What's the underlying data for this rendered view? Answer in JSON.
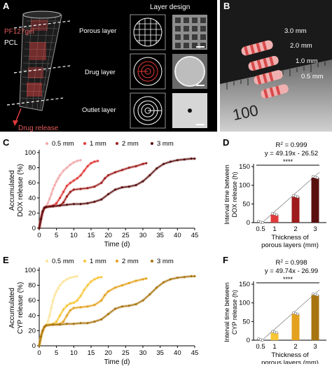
{
  "panel_a": {
    "letter": "A",
    "pf127_label": "PF127gel",
    "pcl_label": "PCL",
    "drug_release_label": "Drug release",
    "layer_design_title": "Layer design",
    "layers": [
      "Porous layer",
      "Drug layer",
      "Outlet layer"
    ]
  },
  "panel_b": {
    "letter": "B",
    "size_labels": [
      "3.0 mm",
      "2.0 mm",
      "1.0 mm",
      "0.5 mm"
    ],
    "ruler_text": "100"
  },
  "colors": {
    "c_05": "#f2a8a8",
    "c_1": "#e03a3a",
    "c_2": "#9e1c1c",
    "c_3": "#5a0f0f",
    "e_05": "#fde49a",
    "e_1": "#f7c535",
    "e_2": "#e3a11d",
    "e_3": "#a8740f"
  },
  "chart_data": [
    {
      "panel": "C",
      "type": "scatter",
      "xlabel": "Time (d)",
      "ylabel_lines": [
        "Accumulated",
        "DOX release (%)"
      ],
      "xlim": [
        0,
        45
      ],
      "ylim": [
        0,
        100
      ],
      "xticks": [
        0,
        5,
        10,
        15,
        20,
        25,
        30,
        35,
        40,
        45
      ],
      "yticks": [
        0,
        20,
        40,
        60,
        80,
        100
      ],
      "legend": [
        "0.5 mm",
        "1 mm",
        "2 mm",
        "3 mm"
      ],
      "series": [
        {
          "name": "0.5 mm",
          "x": [
            0,
            0.5,
            1,
            1.5,
            2,
            2.5,
            3,
            3.5,
            4,
            4.5,
            5,
            5.5,
            6,
            7,
            8,
            9,
            10,
            11,
            12
          ],
          "y": [
            0,
            12,
            22,
            27,
            29,
            33,
            39,
            45,
            52,
            57,
            62,
            66,
            70,
            76,
            80,
            84,
            87,
            89,
            90
          ]
        },
        {
          "name": "1 mm",
          "x": [
            0,
            0.5,
            1,
            1.5,
            2,
            3,
            4,
            5,
            6,
            7,
            8,
            9,
            10,
            11,
            12,
            13,
            14,
            15,
            16,
            17
          ],
          "y": [
            0,
            12,
            22,
            27,
            28,
            29,
            30,
            33,
            40,
            48,
            56,
            60,
            63,
            66,
            70,
            76,
            82,
            86,
            88,
            89
          ]
        },
        {
          "name": "2 mm",
          "x": [
            0,
            0.5,
            1,
            1.5,
            2,
            4,
            6,
            7,
            8,
            9,
            10,
            12,
            14,
            16,
            18,
            19,
            20,
            22,
            24,
            26,
            28,
            30,
            31
          ],
          "y": [
            0,
            12,
            22,
            27,
            28,
            29,
            30,
            34,
            42,
            48,
            51,
            52,
            53,
            55,
            60,
            66,
            70,
            74,
            77,
            80,
            82,
            85,
            86
          ]
        },
        {
          "name": "3 mm",
          "x": [
            0,
            0.5,
            1,
            1.5,
            2,
            4,
            6,
            8,
            10,
            12,
            14,
            16,
            18,
            20,
            22,
            24,
            26,
            28,
            30,
            32,
            34,
            36,
            38,
            40,
            42,
            44,
            45
          ],
          "y": [
            0,
            12,
            22,
            27,
            28,
            29,
            30,
            31,
            32,
            32,
            33,
            35,
            38,
            45,
            51,
            54,
            55,
            57,
            62,
            70,
            79,
            85,
            88,
            90,
            91,
            92,
            92
          ]
        }
      ]
    },
    {
      "panel": "D",
      "type": "bar",
      "categories": [
        "0.5",
        "1",
        "2",
        "3"
      ],
      "values": [
        0,
        21,
        69,
        120
      ],
      "xlabel_lines": [
        "Thickness of",
        "porous layers (mm)"
      ],
      "ylabel_lines": [
        "Interval time between",
        "DOX release (h)"
      ],
      "ylim": [
        0,
        150
      ],
      "yticks": [
        0,
        50,
        100,
        150
      ],
      "r2": "R",
      "r2_value": " = 0.999",
      "equation": "y = 49.19x - 26.52",
      "significance": "****"
    },
    {
      "panel": "E",
      "type": "scatter",
      "xlabel": "Time (d)",
      "ylabel_lines": [
        "Accumulated",
        "CYP release (%)"
      ],
      "xlim": [
        0,
        45
      ],
      "ylim": [
        0,
        100
      ],
      "xticks": [
        0,
        5,
        10,
        15,
        20,
        25,
        30,
        35,
        40,
        45
      ],
      "yticks": [
        0,
        20,
        40,
        60,
        80,
        100
      ],
      "legend": [
        "0.5 mm",
        "1 mm",
        "2 mm",
        "3 mm"
      ],
      "series": [
        {
          "name": "0.5 mm",
          "x": [
            0,
            0.5,
            1,
            1.5,
            2,
            2.5,
            3,
            3.5,
            4,
            4.5,
            5,
            5.5,
            6,
            7,
            8,
            9,
            10,
            11
          ],
          "y": [
            0,
            12,
            20,
            25,
            27,
            32,
            40,
            50,
            60,
            67,
            72,
            76,
            80,
            85,
            88,
            90,
            91,
            92
          ]
        },
        {
          "name": "1 mm",
          "x": [
            0,
            0.5,
            1,
            1.5,
            2,
            3,
            4,
            5,
            6,
            7,
            8,
            9,
            10,
            11,
            12,
            13,
            14,
            15,
            16,
            17,
            18
          ],
          "y": [
            0,
            12,
            20,
            25,
            27,
            28,
            29,
            32,
            40,
            48,
            53,
            56,
            57,
            60,
            66,
            74,
            80,
            85,
            88,
            90,
            91
          ]
        },
        {
          "name": "2 mm",
          "x": [
            0,
            0.5,
            1,
            1.5,
            2,
            4,
            6,
            7,
            8,
            9,
            10,
            12,
            14,
            16,
            18,
            19,
            20,
            22,
            24,
            26,
            28,
            30,
            31
          ],
          "y": [
            0,
            12,
            20,
            25,
            27,
            28,
            29,
            32,
            40,
            47,
            50,
            51,
            52,
            54,
            60,
            67,
            72,
            77,
            80,
            83,
            86,
            88,
            89
          ]
        },
        {
          "name": "3 mm",
          "x": [
            0,
            0.5,
            1,
            1.5,
            2,
            4,
            6,
            8,
            10,
            12,
            14,
            16,
            18,
            20,
            22,
            24,
            26,
            28,
            30,
            32,
            34,
            36,
            38,
            40,
            42,
            44,
            45
          ],
          "y": [
            0,
            12,
            20,
            25,
            27,
            28,
            28,
            29,
            29,
            30,
            30,
            32,
            35,
            42,
            49,
            52,
            53,
            55,
            60,
            68,
            77,
            84,
            88,
            90,
            91,
            92,
            92
          ]
        }
      ]
    },
    {
      "panel": "F",
      "type": "bar",
      "categories": [
        "0.5",
        "1",
        "2",
        "3"
      ],
      "values": [
        0,
        20,
        70,
        121
      ],
      "xlabel_lines": [
        "Thickness of",
        "porous layers (mm)"
      ],
      "ylabel_lines": [
        "Interval time between",
        "CYP release (h)"
      ],
      "ylim": [
        0,
        150
      ],
      "yticks": [
        0,
        50,
        100,
        150
      ],
      "r2": "R",
      "r2_value": " = 0.998",
      "equation": "y = 49.74x - 26.99",
      "significance": "****"
    }
  ]
}
